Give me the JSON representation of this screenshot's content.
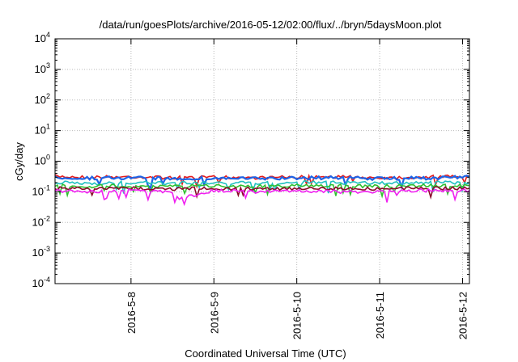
{
  "chart_data": {
    "type": "line",
    "title": "/data/run/goesPlots/archive/2016-05-12/02:00/flux/../bryn/5daysMoon.plot",
    "xlabel": "Coordinated Universal Time (UTC)",
    "ylabel": "cGy/day",
    "x_range": [
      "2016-05-07T02:00",
      "2016-05-12T02:00"
    ],
    "ylim": [
      0.0001,
      10000
    ],
    "y_scale": "log",
    "grid": true,
    "legend": "none",
    "y_ticks": [
      {
        "base": "10",
        "exp": "4"
      },
      {
        "base": "10",
        "exp": "3"
      },
      {
        "base": "10",
        "exp": "2"
      },
      {
        "base": "10",
        "exp": "1"
      },
      {
        "base": "10",
        "exp": "0"
      },
      {
        "base": "10",
        "exp": "-1"
      },
      {
        "base": "10",
        "exp": "-2"
      },
      {
        "base": "10",
        "exp": "-3"
      },
      {
        "base": "10",
        "exp": "-4"
      }
    ],
    "x_ticks": [
      "2016-5-8",
      "2016-5-9",
      "2016-5-10",
      "2016-5-11",
      "2016-5-12"
    ],
    "x_tick_dates": [
      "2016-05-08",
      "2016-05-09",
      "2016-05-10",
      "2016-05-11",
      "2016-05-12"
    ],
    "series": [
      {
        "color": "#e41a1c",
        "points": [
          [
            "2016-05-07T02:00",
            0.32
          ],
          [
            "2016-05-07T12:00",
            0.3
          ],
          [
            "2016-05-08T00:00",
            0.31
          ],
          [
            "2016-05-08T12:00",
            0.29
          ],
          [
            "2016-05-09T00:00",
            0.3
          ],
          [
            "2016-05-09T12:00",
            0.29
          ],
          [
            "2016-05-10T00:00",
            0.3
          ],
          [
            "2016-05-10T12:00",
            0.31
          ],
          [
            "2016-05-11T00:00",
            0.29
          ],
          [
            "2016-05-11T12:00",
            0.3
          ],
          [
            "2016-05-12T02:00",
            0.32
          ]
        ]
      },
      {
        "color": "#1e64e6",
        "points": [
          [
            "2016-05-07T02:00",
            0.3
          ],
          [
            "2016-05-07T12:00",
            0.28
          ],
          [
            "2016-05-08T00:00",
            0.29
          ],
          [
            "2016-05-08T12:00",
            0.27
          ],
          [
            "2016-05-09T00:00",
            0.28
          ],
          [
            "2016-05-09T12:00",
            0.27
          ],
          [
            "2016-05-10T00:00",
            0.28
          ],
          [
            "2016-05-10T12:00",
            0.29
          ],
          [
            "2016-05-11T00:00",
            0.27
          ],
          [
            "2016-05-11T12:00",
            0.28
          ],
          [
            "2016-05-12T02:00",
            0.3
          ]
        ]
      },
      {
        "color": "#20c0c0",
        "points": [
          [
            "2016-05-07T02:00",
            0.2
          ],
          [
            "2016-05-07T12:00",
            0.19
          ],
          [
            "2016-05-08T00:00",
            0.2
          ],
          [
            "2016-05-08T12:00",
            0.19
          ],
          [
            "2016-05-09T00:00",
            0.2
          ],
          [
            "2016-05-09T12:00",
            0.19
          ],
          [
            "2016-05-10T00:00",
            0.2
          ],
          [
            "2016-05-10T12:00",
            0.2
          ],
          [
            "2016-05-11T00:00",
            0.19
          ],
          [
            "2016-05-11T12:00",
            0.2
          ],
          [
            "2016-05-12T02:00",
            0.2
          ]
        ]
      },
      {
        "color": "#30c030",
        "points": [
          [
            "2016-05-07T02:00",
            0.16
          ],
          [
            "2016-05-07T12:00",
            0.15
          ],
          [
            "2016-05-08T00:00",
            0.16
          ],
          [
            "2016-05-08T12:00",
            0.15
          ],
          [
            "2016-05-09T00:00",
            0.16
          ],
          [
            "2016-05-09T12:00",
            0.15
          ],
          [
            "2016-05-10T00:00",
            0.16
          ],
          [
            "2016-05-10T12:00",
            0.16
          ],
          [
            "2016-05-11T00:00",
            0.15
          ],
          [
            "2016-05-11T12:00",
            0.16
          ],
          [
            "2016-05-12T02:00",
            0.16
          ]
        ]
      },
      {
        "color": "#8b0a2a",
        "points": [
          [
            "2016-05-07T02:00",
            0.13
          ],
          [
            "2016-05-07T12:00",
            0.125
          ],
          [
            "2016-05-08T00:00",
            0.13
          ],
          [
            "2016-05-08T12:00",
            0.125
          ],
          [
            "2016-05-09T00:00",
            0.13
          ],
          [
            "2016-05-09T12:00",
            0.125
          ],
          [
            "2016-05-10T00:00",
            0.13
          ],
          [
            "2016-05-10T12:00",
            0.13
          ],
          [
            "2016-05-11T00:00",
            0.125
          ],
          [
            "2016-05-11T12:00",
            0.13
          ],
          [
            "2016-05-12T02:00",
            0.13
          ]
        ]
      },
      {
        "color": "#f020f0",
        "points": [
          [
            "2016-05-07T02:00",
            0.11
          ],
          [
            "2016-05-07T12:00",
            0.1
          ],
          [
            "2016-05-08T00:00",
            0.11
          ],
          [
            "2016-05-08T12:00",
            0.1
          ],
          [
            "2016-05-08T14:00",
            0.06
          ],
          [
            "2016-05-09T00:00",
            0.11
          ],
          [
            "2016-05-09T12:00",
            0.1
          ],
          [
            "2016-05-10T00:00",
            0.11
          ],
          [
            "2016-05-10T12:00",
            0.1
          ],
          [
            "2016-05-11T00:00",
            0.1
          ],
          [
            "2016-05-11T12:00",
            0.11
          ],
          [
            "2016-05-12T02:00",
            0.11
          ]
        ]
      }
    ]
  }
}
